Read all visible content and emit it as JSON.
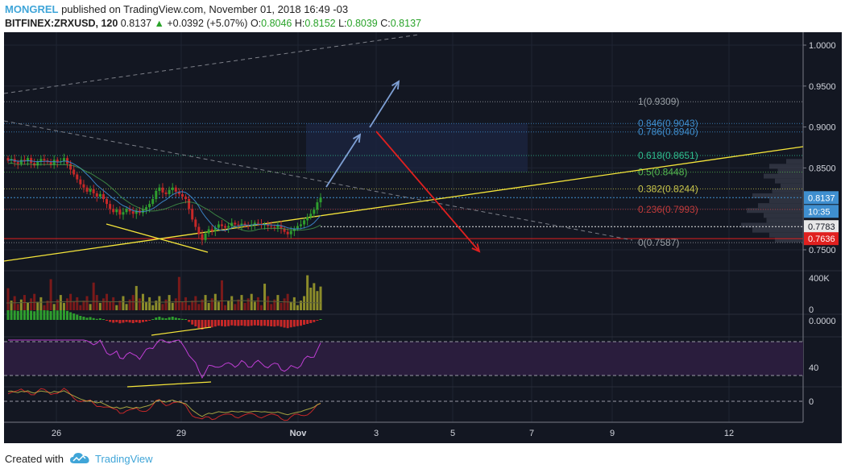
{
  "header": {
    "author": "MONGREL",
    "published": "published on TradingView.com, November 01, 2018 16:49 -03",
    "symbol": "BITFINEX:ZRXUSD, 120",
    "last": "0.8137",
    "change_arrow": "▲",
    "change": "+0.0392 (+5.07%)",
    "o_label": "O:",
    "o_val": "0.8046",
    "h_label": "H:",
    "h_val": "0.8152",
    "l_label": "L:",
    "l_val": "0.8039",
    "c_label": "C:",
    "c_val": "0.8137"
  },
  "footer": {
    "created_with": "Created with",
    "brand": "TradingView",
    "logo_icon": "tradingview-cloud-icon"
  },
  "colors": {
    "background": "#131722",
    "grid": "#1f2433",
    "bull": "#26a69a",
    "bear": "#d32f2f",
    "candle_up": "#2e9e2e",
    "candle_down": "#c62828",
    "trend_yellow": "#f5e53a",
    "arrow_blue": "#7e9fd4",
    "arrow_red": "#e0201f",
    "fib_1": "#9aa0a6",
    "fib_0846": "#3f8fd0",
    "fib_0786": "#3f8fd0",
    "fib_0618": "#2fbf8f",
    "fib_05": "#53b84f",
    "fib_0382": "#c8c44a",
    "fib_0236": "#c23b3b",
    "fib_0": "#9aa0a6",
    "rsi_band": "#2a1d3d",
    "rsi_line": "#c13fd6"
  },
  "chart_data": [
    {
      "id": "price",
      "type": "candlestick",
      "x_ticks": [
        "26",
        "29",
        "Nov",
        "3",
        "5",
        "7",
        "9",
        "12"
      ],
      "y_ticks": [
        "1.0000",
        "0.9500",
        "0.9000",
        "0.8500",
        "0.7500"
      ],
      "ylim": [
        0.745,
        1.01
      ],
      "price_labels": [
        {
          "value": 0.8137,
          "text": "0.8137",
          "color": "#3f8fd0"
        },
        {
          "text": "10:35",
          "color": "#3f8fd0"
        },
        {
          "value": 0.7783,
          "text": "0.7783",
          "color": "#e8e8e8"
        },
        {
          "value": 0.7636,
          "text": "0.7636",
          "color": "#e0201f"
        }
      ],
      "fib_levels": [
        {
          "ratio": "1",
          "value": "0.9309",
          "price": 0.9309
        },
        {
          "ratio": "0.846",
          "value": "0.9043",
          "price": 0.9043
        },
        {
          "ratio": "0.786",
          "value": "0.8940",
          "price": 0.894
        },
        {
          "ratio": "0.618",
          "value": "0.8651",
          "price": 0.8651
        },
        {
          "ratio": "0.5",
          "value": "0.8448",
          "price": 0.8448
        },
        {
          "ratio": "0.382",
          "value": "0.8244",
          "price": 0.8244
        },
        {
          "ratio": "0.236",
          "value": "0.7993",
          "price": 0.7993
        },
        {
          "ratio": "0",
          "value": "0.7587",
          "price": 0.7587
        }
      ],
      "closes": [
        0.859,
        0.861,
        0.857,
        0.855,
        0.86,
        0.858,
        0.862,
        0.856,
        0.853,
        0.858,
        0.861,
        0.859,
        0.857,
        0.854,
        0.86,
        0.857,
        0.858,
        0.862,
        0.855,
        0.848,
        0.842,
        0.836,
        0.83,
        0.826,
        0.821,
        0.824,
        0.819,
        0.815,
        0.818,
        0.812,
        0.806,
        0.8,
        0.796,
        0.799,
        0.793,
        0.796,
        0.8,
        0.797,
        0.794,
        0.798,
        0.795,
        0.799,
        0.802,
        0.806,
        0.812,
        0.822,
        0.826,
        0.82,
        0.818,
        0.823,
        0.826,
        0.821,
        0.818,
        0.815,
        0.812,
        0.8,
        0.787,
        0.778,
        0.769,
        0.762,
        0.77,
        0.775,
        0.773,
        0.777,
        0.781,
        0.779,
        0.777,
        0.779,
        0.783,
        0.781,
        0.78,
        0.782,
        0.78,
        0.779,
        0.781,
        0.783,
        0.782,
        0.78,
        0.781,
        0.779,
        0.778,
        0.777,
        0.78,
        0.776,
        0.772,
        0.769,
        0.773,
        0.776,
        0.779,
        0.781,
        0.786,
        0.79,
        0.794,
        0.799,
        0.808,
        0.8137
      ],
      "volume_label": "400K",
      "volume_zero": "0",
      "macd_label": "0.0000",
      "rsi_label": "40",
      "osc_label": "0"
    }
  ]
}
